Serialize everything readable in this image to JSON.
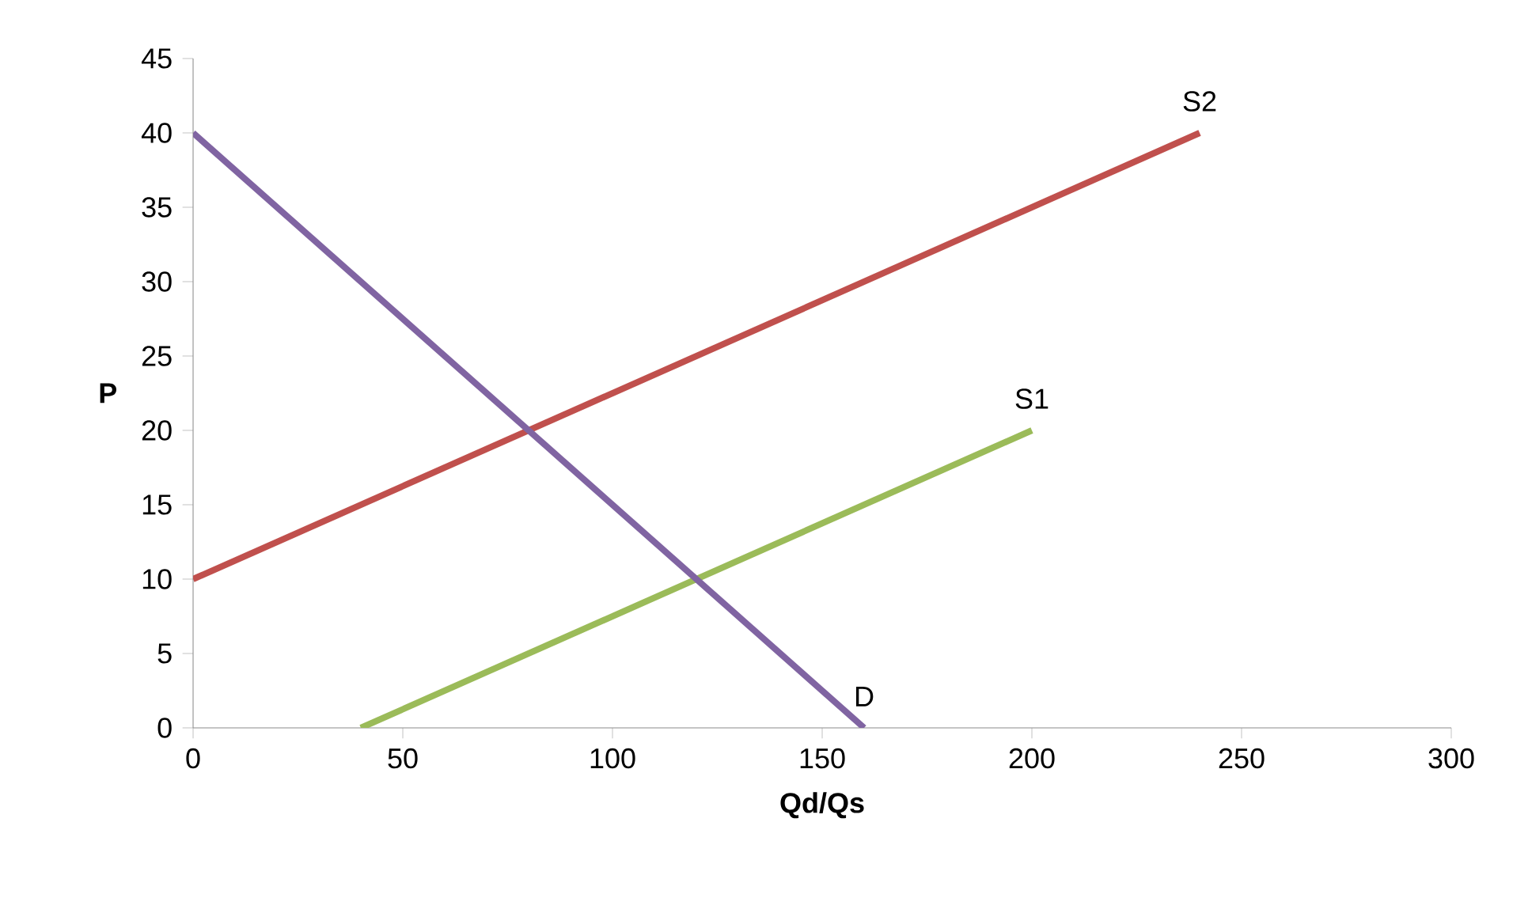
{
  "chart_data": {
    "type": "line",
    "xlabel": "Qd/Qs",
    "ylabel": "P",
    "xlim": [
      0,
      300
    ],
    "ylim": [
      0,
      45
    ],
    "xticks": [
      0,
      50,
      100,
      150,
      200,
      250,
      300
    ],
    "yticks": [
      0,
      5,
      10,
      15,
      20,
      25,
      30,
      35,
      40,
      45
    ],
    "series": [
      {
        "name": "S2",
        "color": "#c0504d",
        "x": [
          0,
          240
        ],
        "values": [
          10,
          40
        ]
      },
      {
        "name": "S1",
        "color": "#9bbb59",
        "x": [
          40,
          200
        ],
        "values": [
          0,
          20
        ]
      },
      {
        "name": "D",
        "color": "#8064a2",
        "x": [
          0,
          160
        ],
        "values": [
          40,
          0
        ]
      }
    ]
  }
}
